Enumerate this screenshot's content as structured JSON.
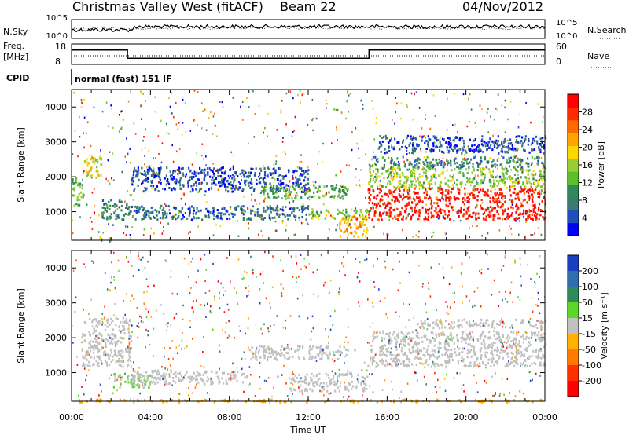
{
  "header": {
    "title": "Christmas Valley West (fitACF)",
    "beam": "Beam 22",
    "date": "04/Nov/2012"
  },
  "noise_panel": {
    "left_label": "N.Sky",
    "right_label": "N.Search",
    "left_ticks": [
      "10^5",
      "10^0"
    ],
    "right_ticks": [
      "10^5",
      "10^0"
    ]
  },
  "freq_panel": {
    "left_label_1": "Freq.",
    "left_label_2": "[MHz]",
    "left_ticks": [
      "18",
      "8"
    ],
    "right_label": "Nave",
    "right_ticks": [
      "60",
      "0"
    ],
    "freq_steps": [
      {
        "from": "00:00",
        "to": "02:50",
        "mhz": 15
      },
      {
        "from": "02:50",
        "to": "15:05",
        "mhz": 11
      },
      {
        "from": "15:05",
        "to": "24:00",
        "mhz": 15
      }
    ]
  },
  "cpid": {
    "label": "CPID",
    "mode": "normal (fast) 151 IF"
  },
  "x_axis": {
    "label": "Time UT",
    "ticks": [
      "00:00",
      "04:00",
      "08:00",
      "12:00",
      "16:00",
      "20:00",
      "00:00"
    ]
  },
  "y_axis": {
    "label": "Slant Range [km]",
    "ticks": [
      "1000",
      "2000",
      "3000",
      "4000"
    ]
  },
  "power_scale": {
    "label": "Power [dB]",
    "ticks": [
      "4",
      "8",
      "12",
      "16",
      "20",
      "24",
      "28"
    ],
    "colors": [
      "#0000ff",
      "#1f4fb8",
      "#3d7a6e",
      "#2e8b57",
      "#5cbf2a",
      "#9acd32",
      "#ffd700",
      "#ffa500",
      "#ff6a00",
      "#ff2a00",
      "#ff0000"
    ]
  },
  "velocity_scale": {
    "label": "Velocity [m s⁻¹]",
    "ticks": [
      "200",
      "100",
      "50",
      "15",
      "-15",
      "-50",
      "-100",
      "-200"
    ],
    "colors": [
      "#1a3fbf",
      "#2f6fb0",
      "#2e8b57",
      "#5cd62a",
      "#c0c0c0",
      "#ffb000",
      "#ff7a00",
      "#ff3000",
      "#ff0000"
    ]
  },
  "chart_data": [
    {
      "type": "heatmap",
      "title": "Power [dB]",
      "xlabel": "Time UT",
      "ylabel": "Slant Range [km]",
      "xlim": [
        "00:00",
        "24:00"
      ],
      "ylim": [
        180,
        4500
      ],
      "value_range": [
        0,
        30
      ],
      "regions": [
        {
          "t": [
            0.0,
            0.6
          ],
          "range": [
            1200,
            2000
          ],
          "value": 12
        },
        {
          "t": [
            0.5,
            1.5
          ],
          "range": [
            2000,
            2600
          ],
          "value": 16
        },
        {
          "t": [
            1.0,
            2.0
          ],
          "range": [
            180,
            300
          ],
          "value": 14
        },
        {
          "t": [
            1.5,
            3.0
          ],
          "range": [
            800,
            1400
          ],
          "value": 8
        },
        {
          "t": [
            3.0,
            12.0
          ],
          "range": [
            800,
            1200
          ],
          "value": 6
        },
        {
          "t": [
            3.0,
            12.0
          ],
          "range": [
            1600,
            2300
          ],
          "value": 4
        },
        {
          "t": [
            9.5,
            14.0
          ],
          "range": [
            1400,
            1800
          ],
          "value": 12
        },
        {
          "t": [
            12.0,
            15.0
          ],
          "range": [
            800,
            1100
          ],
          "value": 14
        },
        {
          "t": [
            13.5,
            15.0
          ],
          "range": [
            300,
            900
          ],
          "value": 20
        },
        {
          "t": [
            15.0,
            24.0
          ],
          "range": [
            800,
            1700
          ],
          "value": 28
        },
        {
          "t": [
            15.0,
            24.0
          ],
          "range": [
            1700,
            2300
          ],
          "value": 14
        },
        {
          "t": [
            15.0,
            24.0
          ],
          "range": [
            2300,
            2600
          ],
          "value": 8
        },
        {
          "t": [
            15.5,
            24.0
          ],
          "range": [
            2700,
            3200
          ],
          "value": 4
        }
      ]
    },
    {
      "type": "heatmap",
      "title": "Velocity [m s⁻¹]",
      "xlabel": "Time UT",
      "ylabel": "Slant Range [km]",
      "xlim": [
        "00:00",
        "24:00"
      ],
      "ylim": [
        180,
        4500
      ],
      "value_range": [
        -200,
        200
      ],
      "regions": [
        {
          "t": [
            0.5,
            3.0
          ],
          "range": [
            1200,
            2600
          ],
          "value": 0
        },
        {
          "t": [
            2.0,
            4.0
          ],
          "range": [
            600,
            1000
          ],
          "value": 25
        },
        {
          "t": [
            3.0,
            9.0
          ],
          "range": [
            700,
            1100
          ],
          "value": 0
        },
        {
          "t": [
            9.0,
            14.0
          ],
          "range": [
            1400,
            1800
          ],
          "value": 0
        },
        {
          "t": [
            11.0,
            15.0
          ],
          "range": [
            500,
            1000
          ],
          "value": 0
        },
        {
          "t": [
            0.0,
            24.0
          ],
          "range": [
            180,
            260
          ],
          "value": -40
        },
        {
          "t": [
            15.0,
            24.0
          ],
          "range": [
            1200,
            2200
          ],
          "value": 0
        },
        {
          "t": [
            17.5,
            24.0
          ],
          "range": [
            2300,
            2550
          ],
          "value": 0
        }
      ]
    }
  ]
}
